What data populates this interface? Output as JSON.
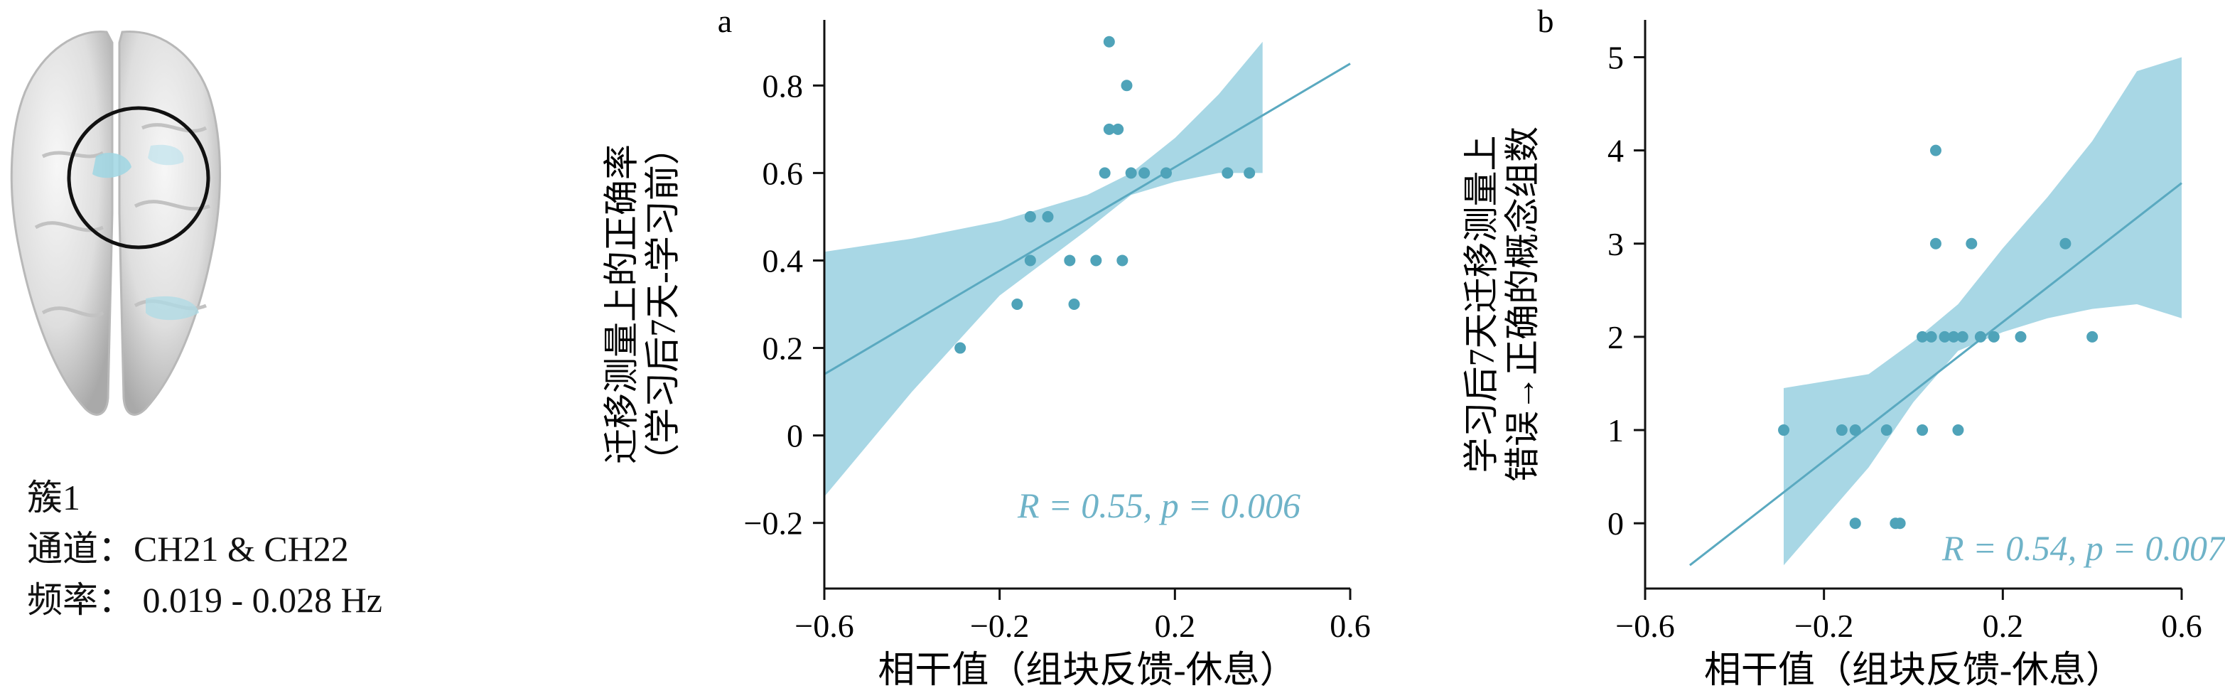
{
  "brain_panel": {
    "cluster_label": "簇1",
    "channel_label": "通道：",
    "channel_value": "CH21 & CH22",
    "frequency_label": "频率：",
    "frequency_value": " 0.019 - 0.028 Hz"
  },
  "colors": {
    "point": "#4fa3b9",
    "band": "#9fd3e2",
    "line": "#5aa9c0",
    "stat": "#6fb3c8"
  },
  "chart_data": [
    {
      "type": "scatter",
      "panel_label": "a",
      "ylabel_lines": [
        "迁移测量上的正确率",
        "（学习后7天-学习前）"
      ],
      "xlabel": "相干值（组块反馈-休息）",
      "stat_text": "R = 0.55, p = 0.006",
      "xlim": [
        -0.6,
        0.6
      ],
      "ylim": [
        -0.35,
        0.95
      ],
      "xticks": [
        -0.6,
        -0.2,
        0.2,
        0.6
      ],
      "xtick_labels": [
        "−0.6",
        "−0.2",
        "0.2",
        "0.6"
      ],
      "yticks": [
        -0.2,
        0,
        0.2,
        0.4,
        0.6,
        0.8
      ],
      "ytick_labels": [
        "−0.2",
        "0",
        "0.2",
        "0.4",
        "0.6",
        "0.8"
      ],
      "points": [
        [
          -0.29,
          0.2
        ],
        [
          -0.16,
          0.3
        ],
        [
          -0.13,
          0.4
        ],
        [
          -0.13,
          0.5
        ],
        [
          -0.09,
          0.5
        ],
        [
          -0.04,
          0.4
        ],
        [
          -0.03,
          0.3
        ],
        [
          0.02,
          0.4
        ],
        [
          0.08,
          0.4
        ],
        [
          0.04,
          0.6
        ],
        [
          0.05,
          0.7
        ],
        [
          0.07,
          0.7
        ],
        [
          0.05,
          0.9
        ],
        [
          0.09,
          0.8
        ],
        [
          0.1,
          0.6
        ],
        [
          0.13,
          0.6
        ],
        [
          0.18,
          0.6
        ],
        [
          0.32,
          0.6
        ],
        [
          0.37,
          0.6
        ]
      ],
      "fit_line": [
        [
          -0.6,
          0.14
        ],
        [
          0.6,
          0.85
        ]
      ],
      "ci_band": {
        "x": [
          -0.6,
          -0.4,
          -0.2,
          0.0,
          0.1,
          0.2,
          0.3,
          0.4
        ],
        "upper": [
          0.42,
          0.45,
          0.49,
          0.55,
          0.6,
          0.68,
          0.78,
          0.9
        ],
        "lower": [
          -0.14,
          0.1,
          0.32,
          0.47,
          0.55,
          0.58,
          0.6,
          0.6
        ]
      }
    },
    {
      "type": "scatter",
      "panel_label": "b",
      "ylabel_lines": [
        "学习后7天迁移测量上",
        "错误→正确的概念组数"
      ],
      "xlabel": "相干值（组块反馈-休息）",
      "stat_text": "R = 0.54, p = 0.007",
      "xlim": [
        -0.6,
        0.6
      ],
      "ylim": [
        -0.7,
        5.4
      ],
      "xticks": [
        -0.6,
        -0.2,
        0.2,
        0.6
      ],
      "xtick_labels": [
        "−0.6",
        "−0.2",
        "0.2",
        "0.6"
      ],
      "yticks": [
        0,
        1,
        2,
        3,
        4,
        5
      ],
      "ytick_labels": [
        "0",
        "1",
        "2",
        "3",
        "4",
        "5"
      ],
      "points": [
        [
          -0.29,
          1
        ],
        [
          -0.16,
          1
        ],
        [
          -0.13,
          1
        ],
        [
          -0.13,
          0
        ],
        [
          -0.06,
          1
        ],
        [
          -0.04,
          0
        ],
        [
          -0.03,
          0
        ],
        [
          0.02,
          1
        ],
        [
          0.02,
          2
        ],
        [
          0.04,
          2
        ],
        [
          0.05,
          4
        ],
        [
          0.05,
          3
        ],
        [
          0.07,
          2
        ],
        [
          0.09,
          2
        ],
        [
          0.1,
          1
        ],
        [
          0.11,
          2
        ],
        [
          0.13,
          3
        ],
        [
          0.15,
          2
        ],
        [
          0.18,
          2
        ],
        [
          0.24,
          2
        ],
        [
          0.34,
          3
        ],
        [
          0.4,
          2
        ]
      ],
      "fit_line": [
        [
          -0.5,
          -0.45
        ],
        [
          0.6,
          3.65
        ]
      ],
      "ci_band": {
        "x": [
          -0.29,
          -0.1,
          0.0,
          0.1,
          0.2,
          0.3,
          0.4,
          0.5,
          0.6
        ],
        "upper": [
          1.45,
          1.6,
          1.95,
          2.35,
          2.95,
          3.5,
          4.1,
          4.85,
          5.0
        ],
        "lower": [
          -0.45,
          0.6,
          1.3,
          1.85,
          2.05,
          2.2,
          2.3,
          2.35,
          2.2
        ]
      }
    }
  ]
}
